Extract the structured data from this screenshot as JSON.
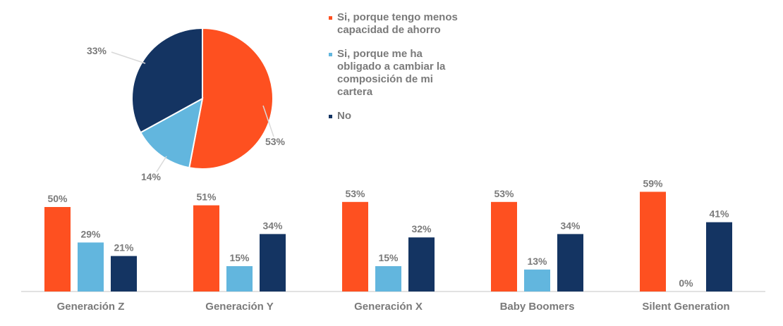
{
  "colors": {
    "series_1": "#FE5020",
    "series_2": "#62B6DE",
    "series_3": "#143462",
    "text": "#7a7a7a",
    "axis": "#d9d9d9"
  },
  "legend": [
    {
      "label": "Si, porque tengo menos capacidad de ahorro",
      "color": "#FE5020"
    },
    {
      "label": "Si, porque me ha obligado a cambiar la composición de mi cartera",
      "color": "#62B6DE"
    },
    {
      "label": "No",
      "color": "#143462"
    }
  ],
  "chart_data": [
    {
      "type": "pie",
      "labels": [
        "Si, porque tengo menos capacidad de ahorro",
        "Si, porque me ha obligado a cambiar la composición de mi cartera",
        "No"
      ],
      "values": [
        53,
        14,
        33
      ],
      "value_labels": [
        "53%",
        "14%",
        "33%"
      ],
      "start": "12 o'clock",
      "direction": "clockwise"
    },
    {
      "type": "bar",
      "categories": [
        "Generación Z",
        "Generación Y",
        "Generación X",
        "Baby Boomers",
        "Silent Generation"
      ],
      "series": [
        {
          "name": "Si, porque tengo menos capacidad de ahorro",
          "values": [
            50,
            51,
            53,
            53,
            59
          ],
          "labels": [
            "50%",
            "51%",
            "53%",
            "53%",
            "59%"
          ]
        },
        {
          "name": "Si, porque me ha obligado a cambiar la composición de mi cartera",
          "values": [
            29,
            15,
            15,
            13,
            0
          ],
          "labels": [
            "29%",
            "15%",
            "15%",
            "13%",
            "0%"
          ]
        },
        {
          "name": "No",
          "values": [
            21,
            34,
            32,
            34,
            41
          ],
          "labels": [
            "21%",
            "34%",
            "32%",
            "34%",
            "41%"
          ]
        }
      ],
      "ylim": [
        0,
        70
      ],
      "grid": false
    }
  ]
}
